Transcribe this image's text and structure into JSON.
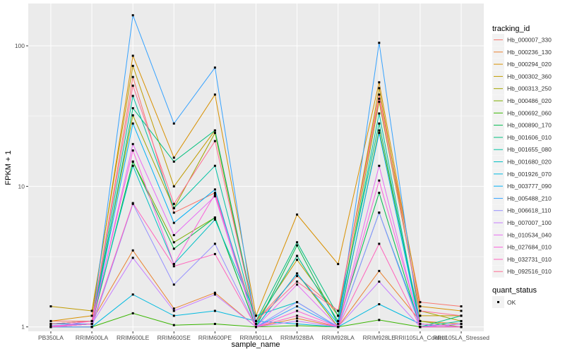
{
  "chart_data": {
    "type": "line",
    "title": "",
    "xlabel": "sample_name",
    "ylabel": "FPKM + 1",
    "y_scale": "log10",
    "ylim": [
      0.93,
      200
    ],
    "y_ticks": [
      1,
      10,
      100
    ],
    "grid": true,
    "legend_placement": "right",
    "categories": [
      "PB350LA",
      "RRIM600LA",
      "RRIM600LE",
      "RRIM600SE",
      "RRIM600PE",
      "RRIM901LA",
      "RRIM928BA",
      "RRIM928LA",
      "RRIM928LE",
      "RRII105LA_Control",
      "RRII105LA_Stressed"
    ],
    "legend_title": "tracking_id",
    "point_legend_title": "quant_status",
    "point_legend_entries": [
      "OK"
    ],
    "series": [
      {
        "name": "Hb_000007_330",
        "color": "#F8766D",
        "values": [
          1.1,
          1.1,
          60,
          6.5,
          9,
          1.1,
          2.3,
          1.3,
          45,
          1.5,
          1.4
        ]
      },
      {
        "name": "Hb_000236_130",
        "color": "#EA8331",
        "values": [
          1.05,
          1.1,
          3.5,
          1.35,
          1.75,
          1.0,
          1.15,
          1.0,
          2.5,
          1.1,
          1.05
        ]
      },
      {
        "name": "Hb_000294_020",
        "color": "#D89000",
        "values": [
          1.1,
          1.2,
          85,
          16,
          45,
          1.2,
          6.3,
          2.8,
          55,
          1.4,
          1.3
        ]
      },
      {
        "name": "Hb_000302_360",
        "color": "#C09B00",
        "values": [
          1.4,
          1.3,
          72,
          10,
          25,
          1.1,
          3.0,
          1.2,
          50,
          1.2,
          1.2
        ]
      },
      {
        "name": "Hb_000313_250",
        "color": "#A3A500",
        "values": [
          1.05,
          1.1,
          32,
          7,
          24,
          1.05,
          3.2,
          1.1,
          40,
          1.3,
          1.1
        ]
      },
      {
        "name": "Hb_000486_020",
        "color": "#7CAE00",
        "values": [
          1.0,
          1.05,
          15,
          4,
          6,
          1.0,
          2.4,
          1.0,
          25,
          1.1,
          1.0
        ]
      },
      {
        "name": "Hb_000692_060",
        "color": "#39B600",
        "values": [
          1.0,
          1.0,
          1.25,
          1.03,
          1.05,
          1.0,
          1.02,
          1.0,
          1.12,
          1.0,
          1.0
        ]
      },
      {
        "name": "Hb_000890_170",
        "color": "#00BB4E",
        "values": [
          1.0,
          1.05,
          15,
          3.6,
          6,
          1.0,
          3.8,
          1.05,
          9,
          1.0,
          1.05
        ]
      },
      {
        "name": "Hb_001606_010",
        "color": "#00BF7D",
        "values": [
          1.0,
          1.0,
          36,
          15,
          25,
          1.1,
          4.0,
          1.2,
          28,
          1.0,
          1.2
        ]
      },
      {
        "name": "Hb_001655_080",
        "color": "#00C1A3",
        "values": [
          1.02,
          1.05,
          44,
          7,
          14,
          1.05,
          3.2,
          1.1,
          33,
          1.0,
          1.1
        ]
      },
      {
        "name": "Hb_001680_020",
        "color": "#00BFC4",
        "values": [
          1.05,
          1.1,
          14,
          2.8,
          5.8,
          1.2,
          1.5,
          1.0,
          6.5,
          1.05,
          1.0
        ]
      },
      {
        "name": "Hb_001926_070",
        "color": "#00BAE0",
        "values": [
          1.0,
          1.0,
          1.7,
          1.2,
          1.3,
          1.1,
          1.05,
          1.0,
          1.45,
          1.05,
          1.0
        ]
      },
      {
        "name": "Hb_003777_090",
        "color": "#00B0F6",
        "values": [
          1.05,
          1.05,
          28,
          5.5,
          9.5,
          1.0,
          2.4,
          1.05,
          24,
          1.0,
          1.05
        ]
      },
      {
        "name": "Hb_005488_210",
        "color": "#35A2FF",
        "values": [
          1.0,
          1.05,
          165,
          28,
          70,
          1.0,
          1.4,
          1.0,
          105,
          1.0,
          1.05
        ]
      },
      {
        "name": "Hb_006618_110",
        "color": "#9590FF",
        "values": [
          1.0,
          1.0,
          7.5,
          2.0,
          3.9,
          1.0,
          1.5,
          1.0,
          6.5,
          1.0,
          1.05
        ]
      },
      {
        "name": "Hb_007007_100",
        "color": "#C77CFF",
        "values": [
          1.02,
          1.05,
          3.1,
          1.3,
          1.7,
          1.0,
          1.1,
          1.0,
          2.1,
          1.0,
          1.0
        ]
      },
      {
        "name": "Hb_010534_040",
        "color": "#E76BF3",
        "values": [
          1.0,
          1.05,
          20,
          4.5,
          8.5,
          1.0,
          2.0,
          1.0,
          14,
          1.0,
          1.05
        ]
      },
      {
        "name": "Hb_027684_010",
        "color": "#FA62DB",
        "values": [
          1.0,
          1.1,
          18,
          2.8,
          8.8,
          1.0,
          1.3,
          1.0,
          11,
          1.05,
          1.0
        ]
      },
      {
        "name": "Hb_032731_010",
        "color": "#FF62BC",
        "values": [
          1.0,
          1.05,
          7.6,
          2.7,
          3.3,
          1.0,
          1.2,
          1.0,
          3.9,
          1.0,
          1.0
        ]
      },
      {
        "name": "Hb_092516_010",
        "color": "#FF6C91",
        "values": [
          1.05,
          1.1,
          52,
          7.5,
          21,
          1.1,
          2.1,
          1.3,
          42,
          1.3,
          1.2
        ]
      }
    ]
  }
}
